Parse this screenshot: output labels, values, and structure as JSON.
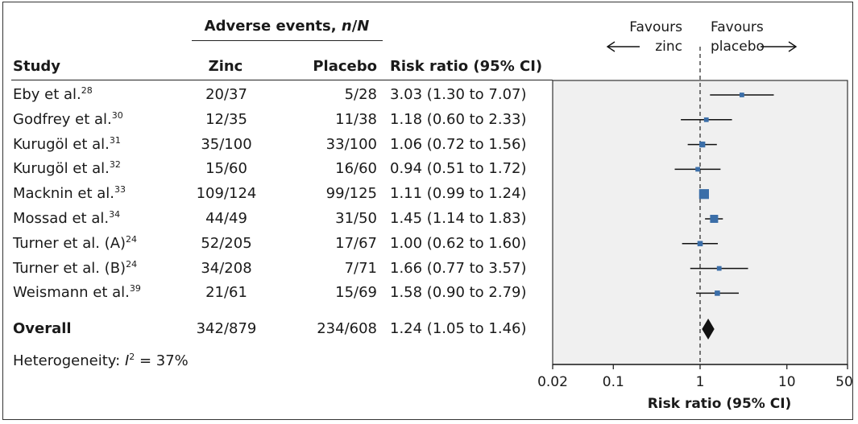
{
  "header": {
    "group_label": "Adverse events, ",
    "group_label_italic": "n",
    "group_label_sep": "/",
    "group_label_italic2": "N",
    "col_study": "Study",
    "col_zinc": "Zinc",
    "col_placebo": "Placebo",
    "col_rr": "Risk ratio (95% CI)",
    "favours_left_1": "Favours",
    "favours_left_2": "zinc",
    "favours_right_1": "Favours",
    "favours_right_2": "placebo"
  },
  "rows": [
    {
      "study": "Eby et al.",
      "ref": "28",
      "zinc": "20/37",
      "placebo": "5/28",
      "rr_text": "3.03 (1.30 to 7.07)"
    },
    {
      "study": "Godfrey et al.",
      "ref": "30",
      "zinc": "12/35",
      "placebo": "11/38",
      "rr_text": "1.18 (0.60 to 2.33)"
    },
    {
      "study": "Kurugöl et al.",
      "ref": "31",
      "zinc": "35/100",
      "placebo": "33/100",
      "rr_text": "1.06 (0.72 to 1.56)"
    },
    {
      "study": "Kurugöl et al.",
      "ref": "32",
      "zinc": "15/60",
      "placebo": "16/60",
      "rr_text": "0.94 (0.51 to 1.72)"
    },
    {
      "study": "Macknin et al.",
      "ref": "33",
      "zinc": "109/124",
      "placebo": "99/125",
      "rr_text": "1.11 (0.99 to 1.24)"
    },
    {
      "study": "Mossad et al.",
      "ref": "34",
      "zinc": "44/49",
      "placebo": "31/50",
      "rr_text": "1.45 (1.14 to 1.83)"
    },
    {
      "study": "Turner et al. (A)",
      "ref": "24",
      "zinc": "52/205",
      "placebo": "17/67",
      "rr_text": "1.00 (0.62 to 1.60)"
    },
    {
      "study": "Turner et al. (B)",
      "ref": "24",
      "zinc": "34/208",
      "placebo": "7/71",
      "rr_text": "1.66 (0.77 to 3.57)"
    },
    {
      "study": "Weismann et al.",
      "ref": "39",
      "zinc": "21/61",
      "placebo": "15/69",
      "rr_text": "1.58 (0.90 to 2.79)"
    }
  ],
  "overall": {
    "label": "Overall",
    "zinc": "342/879",
    "placebo": "234/608",
    "rr_text": "1.24 (1.05 to 1.46)"
  },
  "heterogeneity": {
    "label": "Heterogeneity: ",
    "symbol": "I",
    "sup": "2",
    "value": " = 37%"
  },
  "chart_data": {
    "type": "forest",
    "xlabel": "Risk ratio (95% CI)",
    "xscale": "log",
    "xlim": [
      0.02,
      50
    ],
    "xticks": [
      0.02,
      0.1,
      1,
      10,
      50
    ],
    "xtick_labels": [
      "0.02",
      "0.1",
      "1",
      "10",
      "50"
    ],
    "null_line": 1,
    "colors": {
      "marker": "#3b6ea8",
      "diamond": "#111111",
      "panel_bg": "#f0f0f0"
    },
    "studies": [
      {
        "rr": 3.03,
        "lo": 1.3,
        "hi": 7.07,
        "weight": 1.0
      },
      {
        "rr": 1.18,
        "lo": 0.6,
        "hi": 2.33,
        "weight": 1.0
      },
      {
        "rr": 1.06,
        "lo": 0.72,
        "hi": 1.56,
        "weight": 1.6
      },
      {
        "rr": 0.94,
        "lo": 0.51,
        "hi": 1.72,
        "weight": 1.0
      },
      {
        "rr": 1.11,
        "lo": 0.99,
        "hi": 1.24,
        "weight": 4.5
      },
      {
        "rr": 1.45,
        "lo": 1.14,
        "hi": 1.83,
        "weight": 3.0
      },
      {
        "rr": 1.0,
        "lo": 0.62,
        "hi": 1.6,
        "weight": 1.3
      },
      {
        "rr": 1.66,
        "lo": 0.77,
        "hi": 3.57,
        "weight": 1.0
      },
      {
        "rr": 1.58,
        "lo": 0.9,
        "hi": 2.79,
        "weight": 1.3
      }
    ],
    "overall": {
      "rr": 1.24,
      "lo": 1.05,
      "hi": 1.46
    }
  }
}
